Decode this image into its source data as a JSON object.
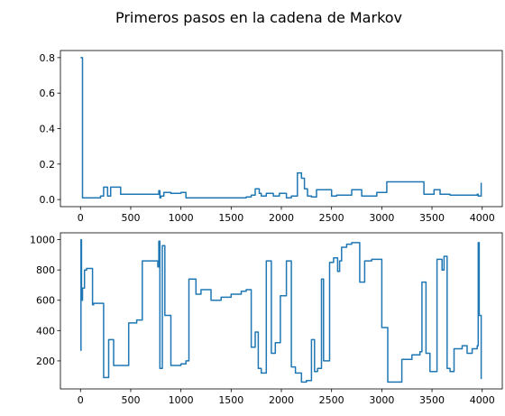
{
  "title": "Primeros pasos en la cadena de Markov",
  "colors": {
    "series": "#1f77b4",
    "background": "#ffffff",
    "axes": "#000000"
  },
  "chart_data": [
    {
      "type": "line",
      "title": "",
      "xlabel": "",
      "ylabel": "",
      "xlim": [
        -200,
        4200
      ],
      "ylim": [
        -0.04,
        0.84
      ],
      "xticks": [
        0,
        500,
        1000,
        1500,
        2000,
        2500,
        3000,
        3500,
        4000
      ],
      "xtick_labels": [
        "0",
        "500",
        "1000",
        "1500",
        "2000",
        "2500",
        "3000",
        "3500",
        "4000"
      ],
      "yticks": [
        0.0,
        0.2,
        0.4,
        0.6,
        0.8
      ],
      "ytick_labels": [
        "0.0",
        "0.2",
        "0.4",
        "0.6",
        "0.8"
      ],
      "grid": false,
      "step": true,
      "series": [
        {
          "x": [
            0,
            20,
            200,
            230,
            270,
            300,
            400,
            780,
            790,
            800,
            830,
            900,
            1000,
            1050,
            1650,
            1700,
            1740,
            1780,
            1800,
            1850,
            1920,
            1980,
            2050,
            2100,
            2160,
            2200,
            2230,
            2260,
            2300,
            2350,
            2500,
            2550,
            2700,
            2800,
            2950,
            3050,
            3420,
            3520,
            3580,
            3680,
            3950,
            3960,
            3990
          ],
          "y": [
            0.8,
            0.01,
            0.02,
            0.07,
            0.02,
            0.07,
            0.03,
            0.05,
            0.01,
            0.02,
            0.04,
            0.035,
            0.04,
            0.01,
            0.015,
            0.025,
            0.06,
            0.035,
            0.02,
            0.035,
            0.02,
            0.035,
            0.01,
            0.02,
            0.15,
            0.12,
            0.06,
            0.02,
            0.015,
            0.055,
            0.02,
            0.025,
            0.055,
            0.02,
            0.04,
            0.1,
            0.03,
            0.055,
            0.03,
            0.025,
            0.03,
            0.02,
            0.095
          ]
        }
      ]
    },
    {
      "type": "line",
      "title": "",
      "xlabel": "",
      "ylabel": "",
      "xlim": [
        -200,
        4200
      ],
      "ylim": [
        15,
        1045
      ],
      "xticks": [
        0,
        500,
        1000,
        1500,
        2000,
        2500,
        3000,
        3500,
        4000
      ],
      "xtick_labels": [
        "0",
        "500",
        "1000",
        "1500",
        "2000",
        "2500",
        "3000",
        "3500",
        "4000"
      ],
      "yticks": [
        200,
        400,
        600,
        800,
        1000
      ],
      "ytick_labels": [
        "200",
        "400",
        "600",
        "800",
        "1000"
      ],
      "grid": false,
      "step": true,
      "series": [
        {
          "x": [
            0,
            5,
            10,
            20,
            40,
            60,
            120,
            130,
            230,
            280,
            330,
            480,
            560,
            615,
            770,
            780,
            790,
            815,
            840,
            900,
            1000,
            1050,
            1080,
            1150,
            1200,
            1300,
            1400,
            1500,
            1600,
            1650,
            1700,
            1740,
            1770,
            1800,
            1850,
            1900,
            1940,
            1990,
            2050,
            2100,
            2140,
            2200,
            2250,
            2300,
            2330,
            2360,
            2400,
            2420,
            2480,
            2520,
            2560,
            2580,
            2600,
            2650,
            2700,
            2780,
            2830,
            2900,
            3000,
            3060,
            3200,
            3300,
            3380,
            3400,
            3440,
            3480,
            3550,
            3600,
            3620,
            3650,
            3680,
            3720,
            3800,
            3850,
            3900,
            3950,
            3960,
            3970,
            3990
          ],
          "y": [
            270,
            1000,
            600,
            680,
            800,
            810,
            570,
            580,
            90,
            340,
            170,
            450,
            470,
            860,
            820,
            990,
            150,
            960,
            500,
            170,
            180,
            200,
            740,
            640,
            670,
            600,
            620,
            640,
            660,
            670,
            290,
            390,
            150,
            120,
            860,
            250,
            320,
            630,
            860,
            160,
            120,
            60,
            70,
            340,
            130,
            150,
            740,
            200,
            850,
            880,
            790,
            860,
            950,
            970,
            980,
            720,
            860,
            870,
            420,
            60,
            210,
            240,
            260,
            720,
            250,
            130,
            870,
            800,
            890,
            150,
            130,
            280,
            300,
            250,
            280,
            300,
            980,
            500,
            80
          ]
        }
      ]
    }
  ]
}
